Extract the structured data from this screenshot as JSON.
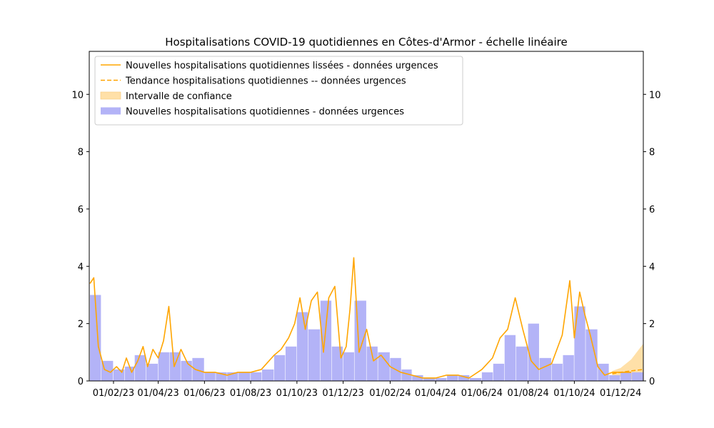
{
  "chart_data": {
    "type": "bar",
    "title": "Hospitalisations COVID-19 quotidiennes en Côtes-d'Armor - échelle linéaire",
    "xlabel": "",
    "ylabel": "",
    "x_range": [
      "2022-12-31",
      "2024-12-31"
    ],
    "ylim": [
      0,
      11.5
    ],
    "y_ticks": [
      0,
      2,
      4,
      6,
      8,
      10
    ],
    "x_ticks": [
      {
        "date": "2023-02-01",
        "label": "01/02/23"
      },
      {
        "date": "2023-04-01",
        "label": "01/04/23"
      },
      {
        "date": "2023-06-01",
        "label": "01/06/23"
      },
      {
        "date": "2023-08-01",
        "label": "01/08/23"
      },
      {
        "date": "2023-10-01",
        "label": "01/10/23"
      },
      {
        "date": "2023-12-01",
        "label": "01/12/23"
      },
      {
        "date": "2024-02-01",
        "label": "01/02/24"
      },
      {
        "date": "2024-04-01",
        "label": "01/04/24"
      },
      {
        "date": "2024-06-01",
        "label": "01/06/24"
      },
      {
        "date": "2024-08-01",
        "label": "01/08/24"
      },
      {
        "date": "2024-10-01",
        "label": "01/10/24"
      },
      {
        "date": "2024-12-01",
        "label": "01/12/24"
      }
    ],
    "grid": false,
    "legend_position": "top-left",
    "colors": {
      "bars": "#b3b3f7",
      "smoothed": "#ffa500",
      "trend": "#ffa500",
      "confidence": "#ffe0a8"
    },
    "legend": [
      {
        "key": "smoothed",
        "label": "Nouvelles hospitalisations quotidiennes lissées - données urgences",
        "style": "solid-line"
      },
      {
        "key": "trend",
        "label": "Tendance hospitalisations quotidiennes -- données urgences",
        "style": "dashed-line"
      },
      {
        "key": "confidence",
        "label": "Intervalle de confiance",
        "style": "patch"
      },
      {
        "key": "bars",
        "label": "Nouvelles hospitalisations quotidiennes - données urgences",
        "style": "bar-patch"
      }
    ],
    "series": [
      {
        "name": "Nouvelles hospitalisations quotidiennes - données urgences",
        "type": "bar",
        "note": "daily counts, mean daily value per half-month period",
        "x": [
          "2023-01-01",
          "2023-01-16",
          "2023-02-01",
          "2023-02-16",
          "2023-03-01",
          "2023-03-16",
          "2023-04-01",
          "2023-04-16",
          "2023-05-01",
          "2023-05-16",
          "2023-06-01",
          "2023-06-16",
          "2023-07-01",
          "2023-07-16",
          "2023-08-01",
          "2023-08-16",
          "2023-09-01",
          "2023-09-16",
          "2023-10-01",
          "2023-10-16",
          "2023-11-01",
          "2023-11-16",
          "2023-12-01",
          "2023-12-16",
          "2024-01-01",
          "2024-01-16",
          "2024-02-01",
          "2024-02-16",
          "2024-03-01",
          "2024-03-16",
          "2024-04-01",
          "2024-04-16",
          "2024-05-01",
          "2024-05-16",
          "2024-06-01",
          "2024-06-16",
          "2024-07-01",
          "2024-07-16",
          "2024-08-01",
          "2024-08-16",
          "2024-09-01",
          "2024-09-16",
          "2024-10-01",
          "2024-10-16",
          "2024-11-01",
          "2024-11-16",
          "2024-12-01",
          "2024-12-16"
        ],
        "values": [
          3.0,
          0.7,
          0.4,
          0.5,
          0.9,
          0.6,
          1.0,
          1.0,
          0.7,
          0.8,
          0.3,
          0.3,
          0.3,
          0.3,
          0.3,
          0.4,
          0.9,
          1.2,
          2.4,
          1.8,
          2.8,
          1.2,
          1.0,
          2.8,
          1.2,
          1.0,
          0.8,
          0.4,
          0.2,
          0.1,
          0.1,
          0.2,
          0.2,
          0.1,
          0.3,
          0.6,
          1.6,
          1.2,
          2.0,
          0.8,
          0.6,
          0.9,
          2.6,
          1.8,
          0.6,
          0.2,
          0.3,
          0.3
        ]
      },
      {
        "name": "Nouvelles hospitalisations quotidiennes lissées - données urgences",
        "type": "line",
        "x": [
          "2023-01-01",
          "2023-01-06",
          "2023-01-12",
          "2023-01-20",
          "2023-01-28",
          "2023-02-05",
          "2023-02-12",
          "2023-02-18",
          "2023-02-25",
          "2023-03-05",
          "2023-03-12",
          "2023-03-18",
          "2023-03-25",
          "2023-04-01",
          "2023-04-08",
          "2023-04-15",
          "2023-04-22",
          "2023-05-01",
          "2023-05-10",
          "2023-05-20",
          "2023-06-01",
          "2023-06-15",
          "2023-07-01",
          "2023-07-15",
          "2023-08-01",
          "2023-08-15",
          "2023-09-01",
          "2023-09-10",
          "2023-09-20",
          "2023-09-28",
          "2023-10-05",
          "2023-10-12",
          "2023-10-20",
          "2023-10-28",
          "2023-11-05",
          "2023-11-12",
          "2023-11-20",
          "2023-11-28",
          "2023-12-05",
          "2023-12-10",
          "2023-12-15",
          "2023-12-22",
          "2024-01-01",
          "2024-01-10",
          "2024-01-20",
          "2024-02-01",
          "2024-02-15",
          "2024-03-01",
          "2024-03-15",
          "2024-04-01",
          "2024-04-15",
          "2024-05-01",
          "2024-05-15",
          "2024-06-01",
          "2024-06-15",
          "2024-06-25",
          "2024-07-05",
          "2024-07-15",
          "2024-07-25",
          "2024-08-05",
          "2024-08-15",
          "2024-09-01",
          "2024-09-15",
          "2024-09-25",
          "2024-10-01",
          "2024-10-08",
          "2024-10-15",
          "2024-10-22",
          "2024-11-01",
          "2024-11-10",
          "2024-11-20",
          "2024-12-01",
          "2024-12-15"
        ],
        "values": [
          3.4,
          3.6,
          1.2,
          0.4,
          0.3,
          0.5,
          0.3,
          0.8,
          0.3,
          0.7,
          1.2,
          0.5,
          1.1,
          0.8,
          1.4,
          2.6,
          0.5,
          1.1,
          0.6,
          0.4,
          0.3,
          0.3,
          0.2,
          0.3,
          0.3,
          0.4,
          0.9,
          1.1,
          1.5,
          2.0,
          2.9,
          1.8,
          2.8,
          3.1,
          1.0,
          2.9,
          3.3,
          0.8,
          1.2,
          2.5,
          4.3,
          1.0,
          1.8,
          0.7,
          0.9,
          0.5,
          0.3,
          0.2,
          0.1,
          0.1,
          0.2,
          0.2,
          0.1,
          0.4,
          0.8,
          1.5,
          1.8,
          2.9,
          1.8,
          0.7,
          0.4,
          0.6,
          1.6,
          3.5,
          1.5,
          3.1,
          2.3,
          1.6,
          0.5,
          0.2,
          0.3,
          0.3,
          0.3
        ]
      },
      {
        "name": "Tendance hospitalisations quotidiennes -- données urgences",
        "type": "line",
        "x": [
          "2024-11-20",
          "2024-12-01",
          "2024-12-15",
          "2024-12-31"
        ],
        "values": [
          0.25,
          0.3,
          0.35,
          0.4
        ]
      },
      {
        "name": "Intervalle de confiance",
        "type": "area",
        "x": [
          "2024-11-20",
          "2024-12-01",
          "2024-12-15",
          "2024-12-31"
        ],
        "lower": [
          0.2,
          0.15,
          0.05,
          0.0
        ],
        "upper": [
          0.35,
          0.45,
          0.75,
          1.3
        ]
      }
    ]
  }
}
